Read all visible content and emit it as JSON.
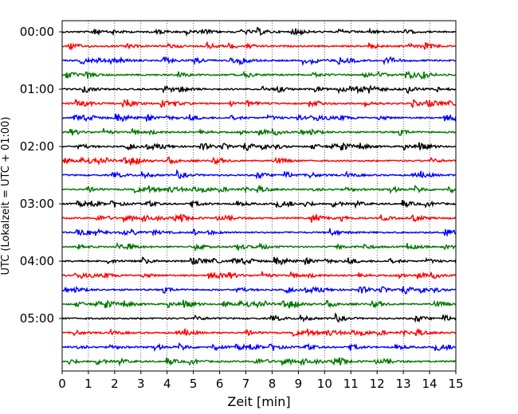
{
  "chart_data": {
    "type": "line",
    "title": "",
    "xlabel": "Zeit  [min]",
    "ylabel": "UTC (Lokalzeit = UTC + 01:00)",
    "xlim": [
      0,
      15
    ],
    "x_ticks": [
      "0",
      "1",
      "2",
      "3",
      "4",
      "5",
      "6",
      "7",
      "8",
      "9",
      "10",
      "11",
      "12",
      "13",
      "14",
      "15"
    ],
    "y_ticks": [
      "00:00",
      "01:00",
      "02:00",
      "03:00",
      "04:00",
      "05:00"
    ],
    "trace_interval_min": 15,
    "trace_count": 24,
    "trace_colors": [
      "#000000",
      "#ff0000",
      "#0000ff",
      "#007700"
    ],
    "grid": "vertical dotted lines at each minute",
    "legend": "none"
  }
}
